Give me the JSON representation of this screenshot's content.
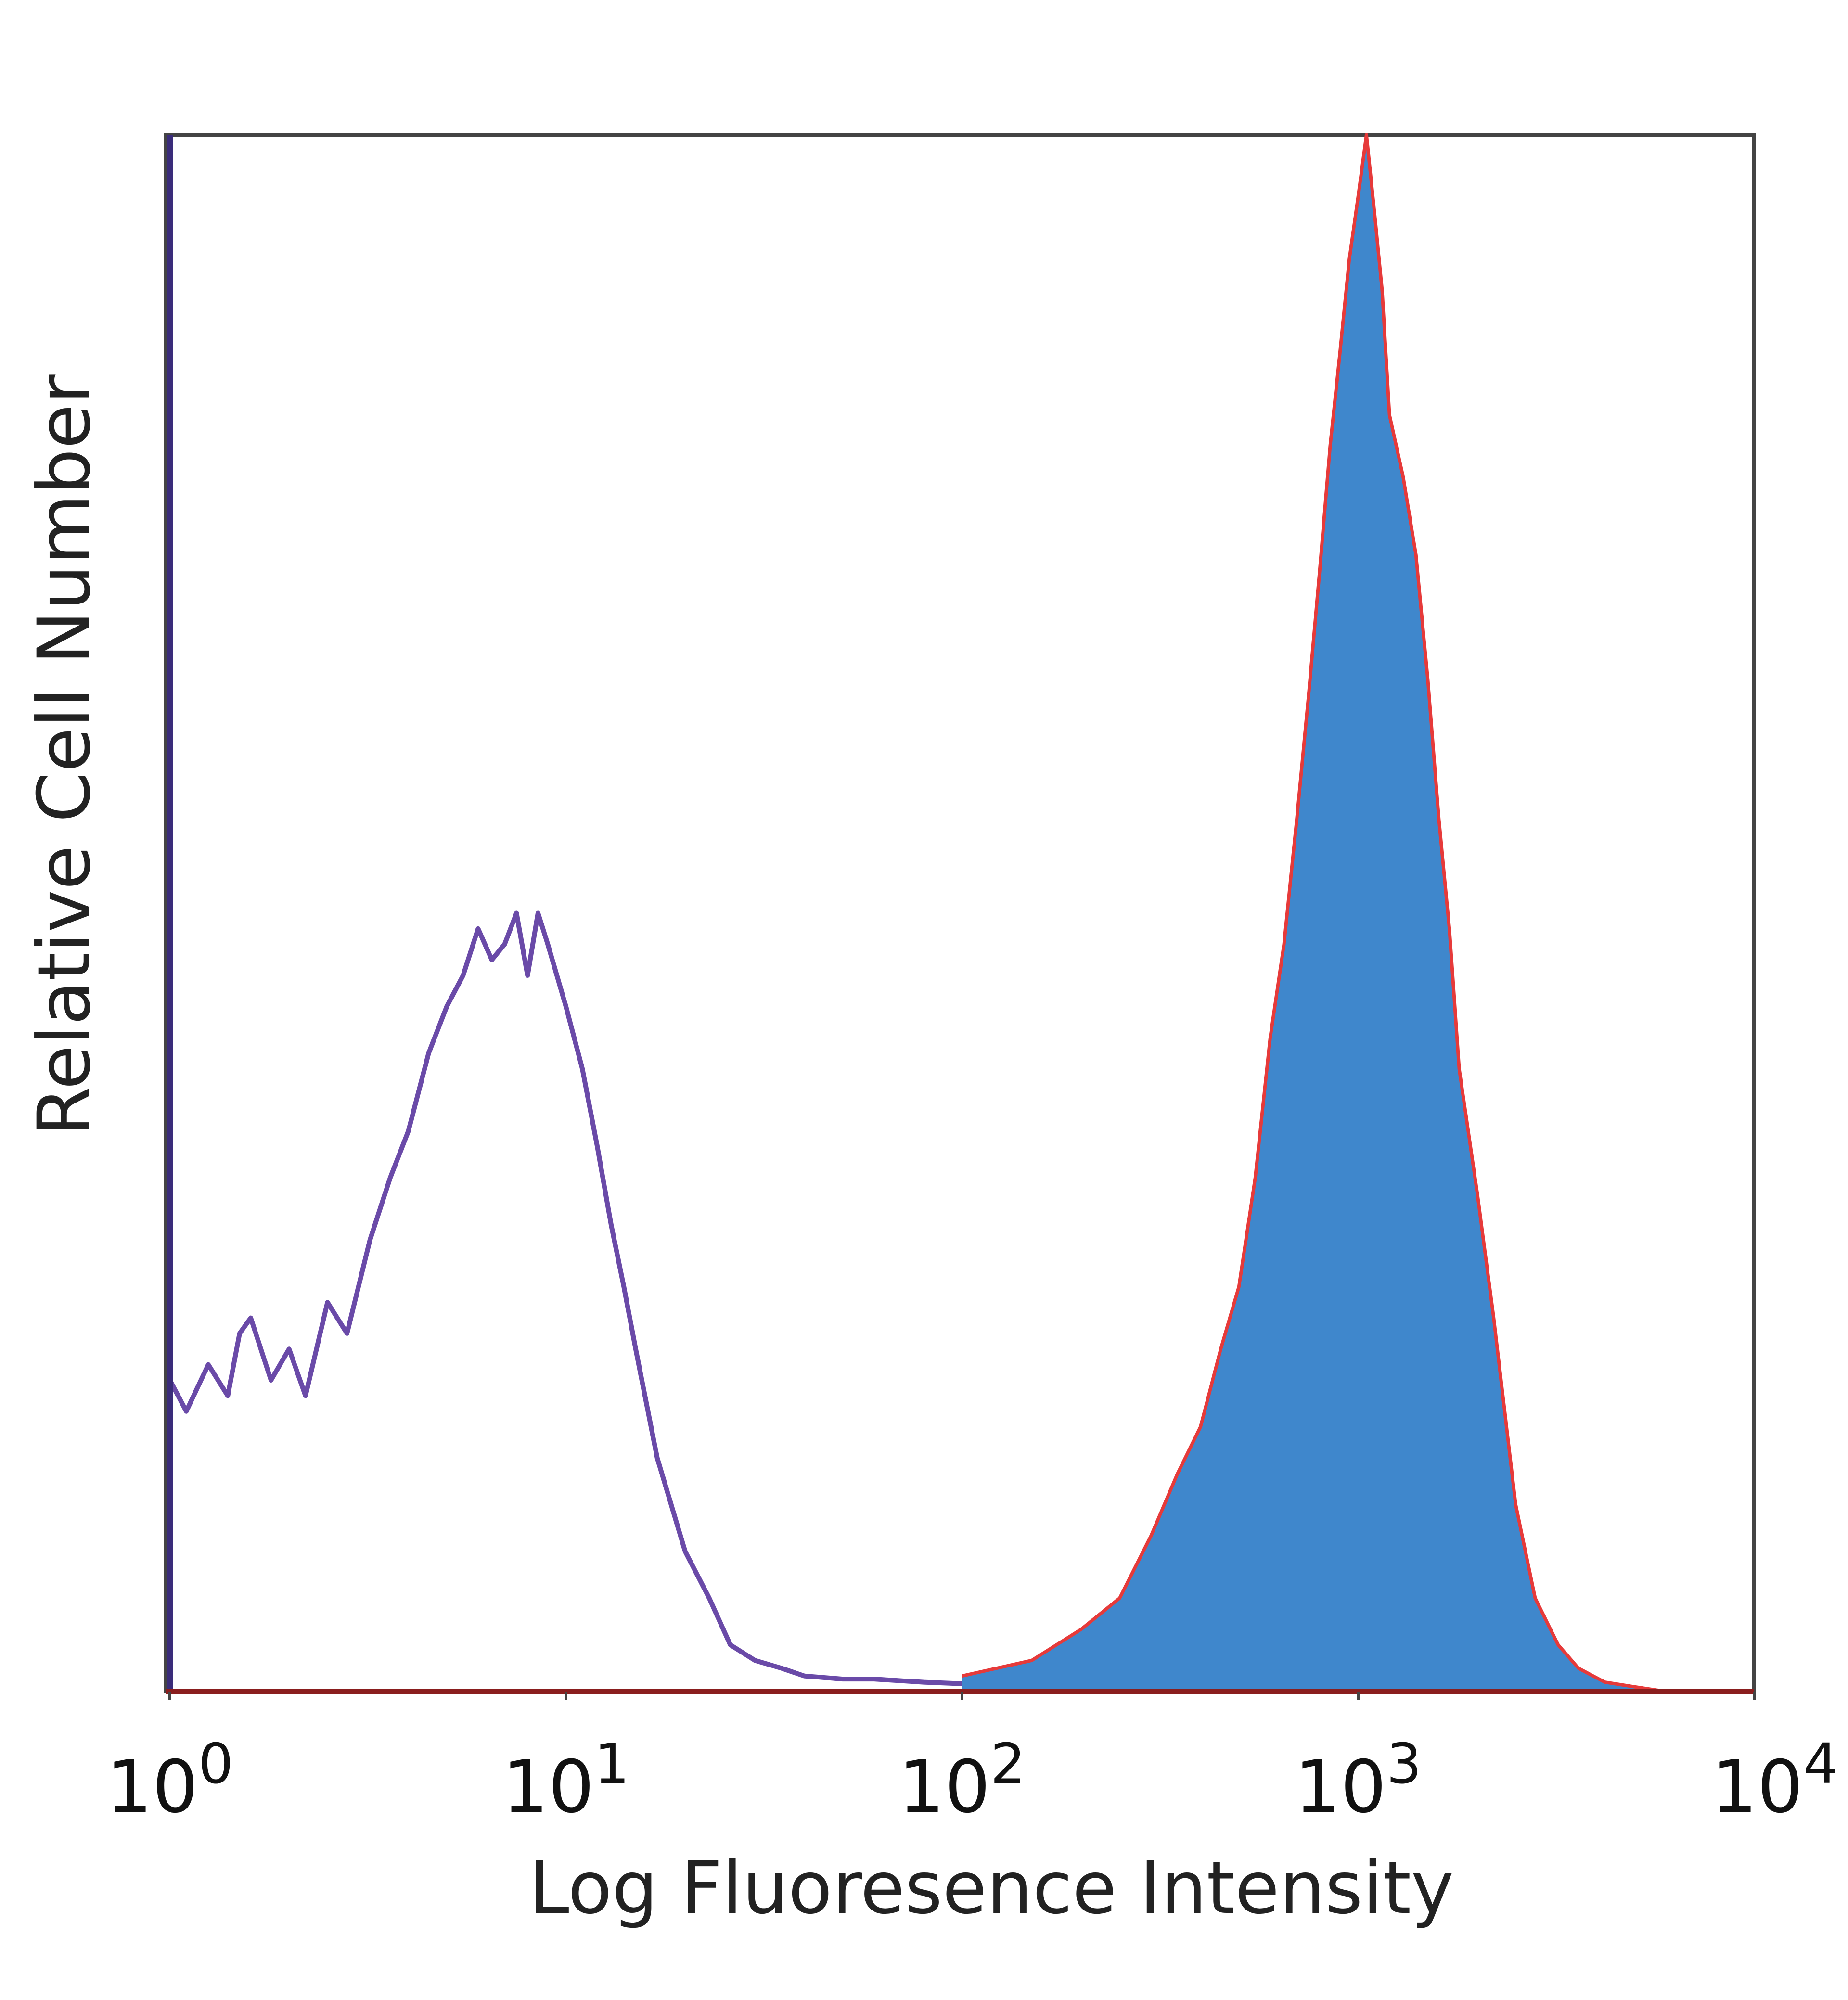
{
  "chart_data": {
    "type": "area",
    "title": "",
    "xlabel": "Log Fluoresence Intensity",
    "ylabel": "Relative Cell Number",
    "x_scale": "log",
    "xlim": [
      1,
      10000
    ],
    "ylim": [
      0,
      1
    ],
    "grid": false,
    "legend": "none",
    "x_ticks": [
      {
        "value": 1,
        "base": "10",
        "exp": "0"
      },
      {
        "value": 10,
        "base": "10",
        "exp": "1"
      },
      {
        "value": 100,
        "base": "10",
        "exp": "2"
      },
      {
        "value": 1000,
        "base": "10",
        "exp": "3"
      },
      {
        "value": 10000,
        "base": "10",
        "exp": "4"
      }
    ],
    "series": [
      {
        "style": "outline",
        "color": "#6a4aa8",
        "x": [
          1.0,
          1.1,
          1.25,
          1.4,
          1.5,
          1.6,
          1.8,
          2.0,
          2.2,
          2.5,
          2.8,
          3.2,
          3.6,
          4.0,
          4.5,
          5.0,
          5.5,
          6.0,
          6.5,
          7.0,
          7.5,
          8.0,
          8.5,
          9.0,
          10.0,
          11.0,
          12.0,
          13.0,
          14.0,
          15.0,
          17.0,
          20.0,
          23.0,
          26.0,
          30.0,
          35.0,
          40.0,
          50.0,
          60.0,
          80.0,
          100.0,
          150.0,
          200.0
        ],
        "values": [
          0.2,
          0.18,
          0.21,
          0.19,
          0.23,
          0.24,
          0.2,
          0.22,
          0.19,
          0.25,
          0.23,
          0.29,
          0.33,
          0.36,
          0.41,
          0.44,
          0.46,
          0.49,
          0.47,
          0.48,
          0.5,
          0.46,
          0.5,
          0.48,
          0.44,
          0.4,
          0.35,
          0.3,
          0.26,
          0.22,
          0.15,
          0.09,
          0.06,
          0.03,
          0.02,
          0.015,
          0.01,
          0.008,
          0.008,
          0.006,
          0.005,
          0.002,
          0.0
        ]
      },
      {
        "style": "filled",
        "color": "#3f87cc",
        "edge_color": "#e63a3a",
        "x": [
          100.0,
          150.0,
          200.0,
          250.0,
          300.0,
          350.0,
          400.0,
          450.0,
          500.0,
          550.0,
          600.0,
          650.0,
          700.0,
          750.0,
          800.0,
          850.0,
          900.0,
          950.0,
          1000.0,
          1050.0,
          1100.0,
          1150.0,
          1200.0,
          1300.0,
          1400.0,
          1500.0,
          1600.0,
          1700.0,
          1800.0,
          2000.0,
          2200.0,
          2500.0,
          2800.0,
          3200.0,
          3600.0,
          4200.0,
          5000.0,
          6000.0
        ],
        "values": [
          0.01,
          0.02,
          0.04,
          0.06,
          0.1,
          0.14,
          0.17,
          0.22,
          0.26,
          0.33,
          0.42,
          0.48,
          0.56,
          0.64,
          0.72,
          0.8,
          0.86,
          0.92,
          0.96,
          1.0,
          0.95,
          0.9,
          0.82,
          0.78,
          0.73,
          0.65,
          0.56,
          0.49,
          0.4,
          0.32,
          0.24,
          0.12,
          0.06,
          0.03,
          0.015,
          0.006,
          0.003,
          0.0
        ]
      }
    ]
  }
}
